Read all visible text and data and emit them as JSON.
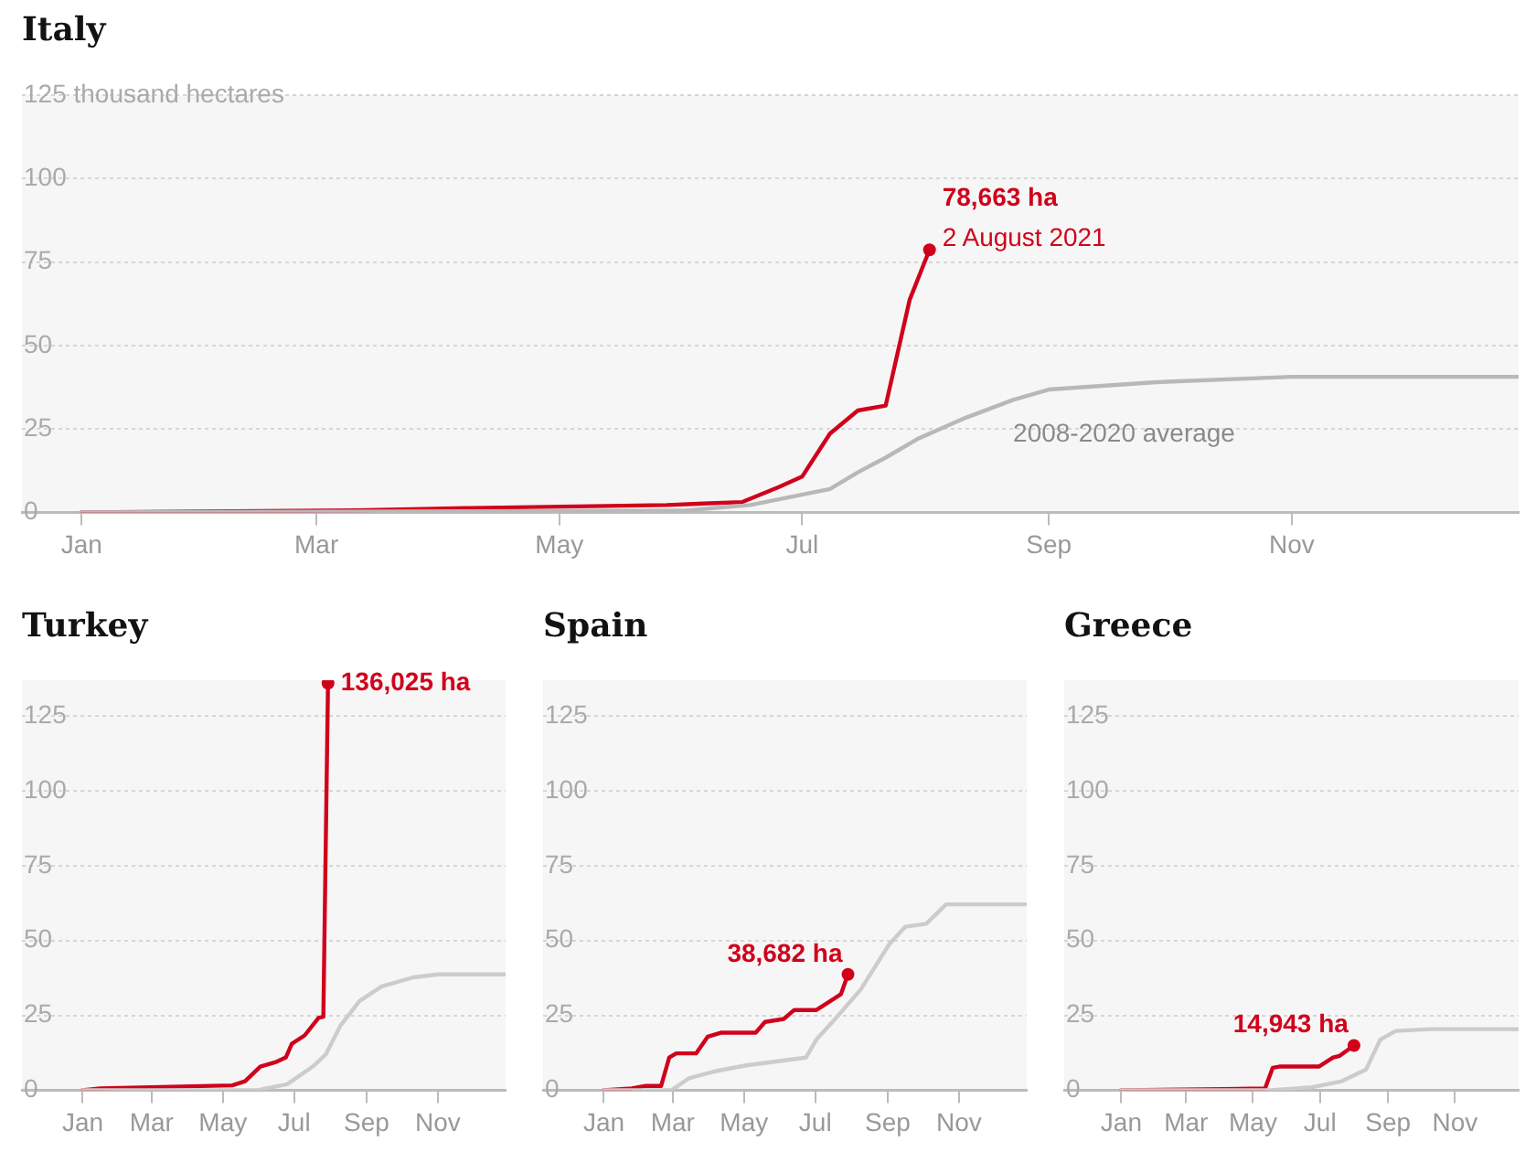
{
  "chart_data": [
    {
      "type": "line",
      "title": "Italy",
      "xlim": [
        "2020-12-17",
        "2021-12-28"
      ],
      "xticks": [
        {
          "value": "2021-01-01",
          "label": "Jan"
        },
        {
          "value": "2021-03-01",
          "label": "Mar"
        },
        {
          "value": "2021-05-01",
          "label": "May"
        },
        {
          "value": "2021-07-01",
          "label": "Jul"
        },
        {
          "value": "2021-09-01",
          "label": "Sep"
        },
        {
          "value": "2021-11-01",
          "label": "Nov"
        }
      ],
      "ylim": [
        0,
        125
      ],
      "yticks": [
        0,
        25,
        50,
        75,
        100,
        {
          "value": 125,
          "label": "125 thousand hectares"
        }
      ],
      "grid": "y",
      "legend": false,
      "annotations": [
        {
          "text": "78,663 ha",
          "x": "2021-08-02",
          "y": 78.663
        },
        {
          "text": "2 August 2021",
          "x": "2021-08-02",
          "y": 78.663
        }
      ],
      "series": [
        {
          "name": "2008-2020 average",
          "color": "#b8b8b8",
          "x": [
            "2021-01-01",
            "2021-06-01",
            "2021-06-18",
            "2021-07-08",
            "2021-07-15",
            "2021-07-22",
            "2021-07-30",
            "2021-08-11",
            "2021-08-23",
            "2021-09-01",
            "2021-09-28",
            "2021-11-01",
            "2021-12-28"
          ],
          "values": [
            0,
            0.5,
            2.2,
            7,
            12,
            16.4,
            22,
            28.3,
            33.7,
            36.8,
            39,
            40.6,
            40.6
          ]
        },
        {
          "color": "#d0021b",
          "x": [
            "2021-01-01",
            "2021-03-11",
            "2021-04-09",
            "2021-05-28",
            "2021-06-16",
            "2021-06-25",
            "2021-07-01",
            "2021-07-08",
            "2021-07-15",
            "2021-07-22",
            "2021-07-28",
            "2021-08-02"
          ],
          "values": [
            0,
            0.6,
            1.3,
            2.2,
            3.1,
            7.5,
            10.7,
            23.6,
            30.5,
            32,
            63.6,
            78.663
          ]
        }
      ]
    },
    {
      "type": "line",
      "title": "Turkey",
      "xlim": [
        "2020-11-10",
        "2021-12-29"
      ],
      "xticks": [
        {
          "value": "2021-01-01",
          "label": "Jan"
        },
        {
          "value": "2021-03-01",
          "label": "Mar"
        },
        {
          "value": "2021-05-01",
          "label": "May"
        },
        {
          "value": "2021-07-01",
          "label": "Jul"
        },
        {
          "value": "2021-09-01",
          "label": "Sep"
        },
        {
          "value": "2021-11-01",
          "label": "Nov"
        }
      ],
      "ylim": [
        0,
        137
      ],
      "yticks": [
        0,
        25,
        50,
        75,
        100,
        125
      ],
      "grid": "y",
      "legend": false,
      "annotations": [
        {
          "text": "136,025 ha",
          "x": "2021-07-30",
          "y": 136.025
        }
      ],
      "series": [
        {
          "color": "#cccccc",
          "x": [
            "2021-01-01",
            "2021-05-31",
            "2021-06-25",
            "2021-07-17",
            "2021-07-28",
            "2021-08-10",
            "2021-08-26",
            "2021-09-14",
            "2021-10-11",
            "2021-11-01",
            "2021-12-28"
          ],
          "values": [
            0,
            0,
            2,
            7.9,
            11.9,
            21.8,
            29.8,
            34.7,
            37.7,
            38.7,
            38.7
          ]
        },
        {
          "color": "#d0021b",
          "x": [
            "2021-01-01",
            "2021-01-16",
            "2021-02-28",
            "2021-05-09",
            "2021-05-20",
            "2021-06-02",
            "2021-06-16",
            "2021-06-24",
            "2021-06-29",
            "2021-07-10",
            "2021-07-22",
            "2021-07-26",
            "2021-07-30"
          ],
          "values": [
            0,
            0.6,
            1,
            1.6,
            3,
            7.9,
            9.5,
            11,
            15.5,
            18.3,
            24.2,
            24.5,
            136.025
          ]
        }
      ]
    },
    {
      "type": "line",
      "title": "Spain",
      "xlim": [
        "2020-11-10",
        "2021-12-29"
      ],
      "xticks": [
        {
          "value": "2021-01-01",
          "label": "Jan"
        },
        {
          "value": "2021-03-01",
          "label": "Mar"
        },
        {
          "value": "2021-05-01",
          "label": "May"
        },
        {
          "value": "2021-07-01",
          "label": "Jul"
        },
        {
          "value": "2021-09-01",
          "label": "Sep"
        },
        {
          "value": "2021-11-01",
          "label": "Nov"
        }
      ],
      "ylim": [
        0,
        137
      ],
      "yticks": [
        0,
        25,
        50,
        75,
        100,
        125
      ],
      "grid": "y",
      "legend": false,
      "annotations": [
        {
          "text": "38,682 ha",
          "x": "2021-07-29",
          "y": 38.682
        }
      ],
      "series": [
        {
          "color": "#cccccc",
          "x": [
            "2021-01-01",
            "2021-02-28",
            "2021-03-15",
            "2021-04-06",
            "2021-05-03",
            "2021-06-23",
            "2021-07-02",
            "2021-07-18",
            "2021-08-09",
            "2021-09-02",
            "2021-09-16",
            "2021-10-04",
            "2021-10-21",
            "2021-12-29"
          ],
          "values": [
            0,
            0,
            4,
            6.3,
            8.3,
            10.9,
            16.9,
            23.8,
            33.7,
            48.6,
            54.6,
            55.6,
            62.1,
            62.1
          ]
        },
        {
          "color": "#d0021b",
          "x": [
            "2021-01-01",
            "2021-01-25",
            "2021-02-05",
            "2021-02-19",
            "2021-02-26",
            "2021-03-04",
            "2021-03-21",
            "2021-03-31",
            "2021-04-11",
            "2021-05-11",
            "2021-05-19",
            "2021-06-04",
            "2021-06-13",
            "2021-07-02",
            "2021-07-10",
            "2021-07-23",
            "2021-07-29"
          ],
          "values": [
            0,
            0.6,
            1.4,
            1.4,
            10.9,
            12.3,
            12.3,
            17.9,
            19.2,
            19.2,
            22.8,
            23.8,
            26.8,
            26.8,
            28.8,
            32.1,
            38.682
          ]
        }
      ]
    },
    {
      "type": "line",
      "title": "Greece",
      "xlim": [
        "2020-11-10",
        "2021-12-29"
      ],
      "xticks": [
        {
          "value": "2021-01-01",
          "label": "Jan"
        },
        {
          "value": "2021-03-01",
          "label": "Mar"
        },
        {
          "value": "2021-05-01",
          "label": "May"
        },
        {
          "value": "2021-07-01",
          "label": "Jul"
        },
        {
          "value": "2021-09-01",
          "label": "Sep"
        },
        {
          "value": "2021-11-01",
          "label": "Nov"
        }
      ],
      "ylim": [
        0,
        137
      ],
      "yticks": [
        0,
        25,
        50,
        75,
        100,
        125
      ],
      "grid": "y",
      "legend": false,
      "annotations": [
        {
          "text": "14,943 ha",
          "x": "2021-08-01",
          "y": 14.943
        }
      ],
      "series": [
        {
          "color": "#cccccc",
          "x": [
            "2021-01-01",
            "2021-05-17",
            "2021-06-24",
            "2021-07-21",
            "2021-08-12",
            "2021-08-25",
            "2021-09-08",
            "2021-10-10",
            "2021-12-29"
          ],
          "values": [
            0,
            0,
            1,
            3,
            6.9,
            16.9,
            19.8,
            20.4,
            20.4
          ]
        },
        {
          "color": "#d0021b",
          "x": [
            "2021-01-01",
            "2021-04-04",
            "2021-05-12",
            "2021-05-19",
            "2021-05-25",
            "2021-06-30",
            "2021-07-13",
            "2021-07-19",
            "2021-08-01"
          ],
          "values": [
            0,
            0.4,
            0.6,
            7.5,
            7.9,
            7.9,
            10.9,
            11.5,
            14.943
          ]
        }
      ]
    }
  ]
}
